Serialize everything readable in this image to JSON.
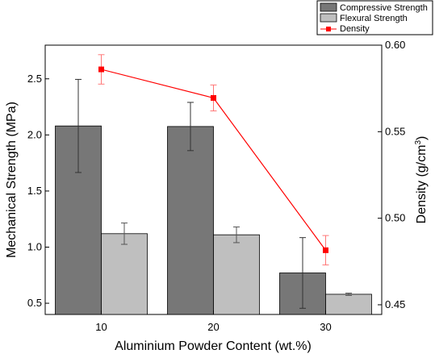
{
  "chart_data": {
    "type": "bar",
    "categories": [
      "10",
      "20",
      "30"
    ],
    "xlabel": "Aluminium Powder Content (wt.%)",
    "ylabel": "Mechanical Strength (MPa)",
    "y2label_main": "Density (g/cm",
    "y2label_sup": "3",
    "y2label_close": ")",
    "ylim": [
      0.4,
      2.8
    ],
    "y2lim": [
      0.4444,
      0.6
    ],
    "yticks": [
      "0.5",
      "1.0",
      "1.5",
      "2.0",
      "2.5"
    ],
    "y2ticks": [
      "0.45",
      "0.50",
      "0.55",
      "0.60"
    ],
    "grid": false,
    "legend_position": "top-right",
    "series": [
      {
        "name": "Compressive Strength",
        "kind": "bar",
        "axis": "left",
        "color": "#777777",
        "values": [
          2.08,
          2.075,
          0.77
        ],
        "errors": [
          0.415,
          0.215,
          0.315
        ]
      },
      {
        "name": "Flexural Strength",
        "kind": "bar",
        "axis": "left",
        "color": "#bfbfbf",
        "values": [
          1.12,
          1.11,
          0.58
        ],
        "errors": [
          0.095,
          0.07,
          0.01
        ]
      },
      {
        "name": "Density",
        "kind": "line",
        "axis": "right",
        "color": "#ff0000",
        "marker": "square",
        "values": [
          0.586,
          0.5695,
          0.4815
        ],
        "errors": [
          0.0085,
          0.0075,
          0.0085
        ]
      }
    ]
  }
}
